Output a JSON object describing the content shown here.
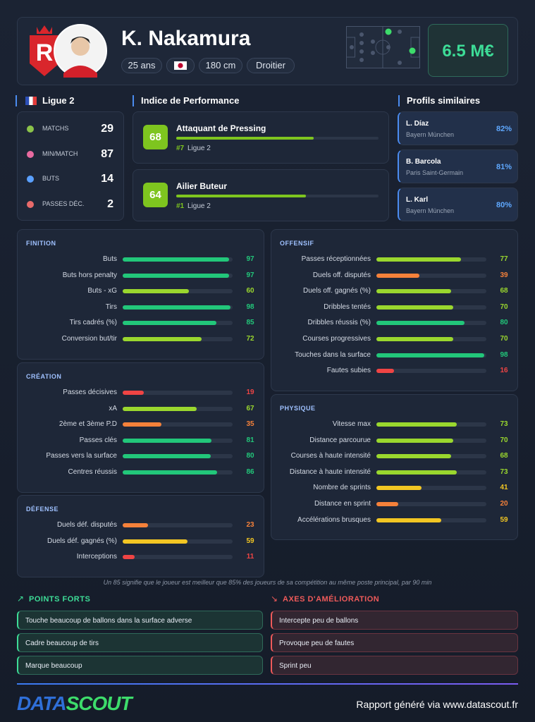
{
  "header": {
    "name": "K. Nakamura",
    "tags": [
      "25 ans",
      "180 cm",
      "Droitier"
    ],
    "market_value": "6.5 M€"
  },
  "league": {
    "title": "Ligue 2",
    "stats": [
      {
        "label": "MATCHS",
        "value": 29
      },
      {
        "label": "MIN/MATCH",
        "value": 87
      },
      {
        "label": "BUTS",
        "value": 14
      },
      {
        "label": "PASSES DÉC.",
        "value": 2
      }
    ]
  },
  "performance": {
    "title": "Indice de Performance",
    "items": [
      {
        "score": 68,
        "role": "Attaquant de Pressing",
        "rank": "#7",
        "league": "Ligue 2"
      },
      {
        "score": 64,
        "role": "Ailier Buteur",
        "rank": "#1",
        "league": "Ligue 2"
      }
    ]
  },
  "similar": {
    "title": "Profils similaires",
    "items": [
      {
        "name": "L. Díaz",
        "club": "Bayern München",
        "score": "82%"
      },
      {
        "name": "B. Barcola",
        "club": "Paris Saint-Germain",
        "score": "81%"
      },
      {
        "name": "L. Karl",
        "club": "Bayern München",
        "score": "80%"
      }
    ]
  },
  "sections": [
    {
      "title": "FINITION",
      "rows": [
        {
          "label": "Buts",
          "value": 97
        },
        {
          "label": "Buts hors penalty",
          "value": 97
        },
        {
          "label": "Buts - xG",
          "value": 60
        },
        {
          "label": "Tirs",
          "value": 98
        },
        {
          "label": "Tirs cadrés (%)",
          "value": 85
        },
        {
          "label": "Conversion but/tir",
          "value": 72
        }
      ]
    },
    {
      "title": "CRÉATION",
      "rows": [
        {
          "label": "Passes décisives",
          "value": 19
        },
        {
          "label": "xA",
          "value": 67
        },
        {
          "label": "2ème et 3ème P.D",
          "value": 35
        },
        {
          "label": "Passes clés",
          "value": 81
        },
        {
          "label": "Passes vers la surface",
          "value": 80
        },
        {
          "label": "Centres réussis",
          "value": 86
        }
      ]
    },
    {
      "title": "DÉFENSE",
      "rows": [
        {
          "label": "Duels déf. disputés",
          "value": 23
        },
        {
          "label": "Duels déf. gagnés (%)",
          "value": 59
        },
        {
          "label": "Interceptions",
          "value": 11
        }
      ]
    },
    {
      "title": "OFFENSIF",
      "rows": [
        {
          "label": "Passes réceptionnées",
          "value": 77
        },
        {
          "label": "Duels off. disputés",
          "value": 39
        },
        {
          "label": "Duels off. gagnés (%)",
          "value": 68
        },
        {
          "label": "Dribbles tentés",
          "value": 70
        },
        {
          "label": "Dribbles réussis (%)",
          "value": 80
        },
        {
          "label": "Courses progressives",
          "value": 70
        },
        {
          "label": "Touches dans la surface",
          "value": 98
        },
        {
          "label": "Fautes subies",
          "value": 16
        }
      ]
    },
    {
      "title": "PHYSIQUE",
      "rows": [
        {
          "label": "Vitesse max",
          "value": 73
        },
        {
          "label": "Distance parcourue",
          "value": 70
        },
        {
          "label": "Courses à haute intensité",
          "value": 68
        },
        {
          "label": "Distance à haute intensité",
          "value": 73
        },
        {
          "label": "Nombre de sprints",
          "value": 41
        },
        {
          "label": "Distance en sprint",
          "value": 20
        },
        {
          "label": "Accélérations brusques",
          "value": 59
        }
      ]
    }
  ],
  "note": "Un 85 signifie que le joueur est meilleur que 85% des joueurs de sa compétition au même poste principal, par 90 min",
  "strengths": {
    "title": "POINTS FORTS",
    "items": [
      "Touche beaucoup de ballons dans la surface adverse",
      "Cadre beaucoup de tirs",
      "Marque beaucoup"
    ]
  },
  "weaknesses": {
    "title": "AXES D'AMÉLIORATION",
    "items": [
      "Intercepte peu de ballons",
      "Provoque peu de fautes",
      "Sprint peu"
    ]
  },
  "footer": {
    "logo_a": "DATA",
    "logo_b": "SCOUT",
    "text": "Rapport généré via www.datascout.fr"
  }
}
